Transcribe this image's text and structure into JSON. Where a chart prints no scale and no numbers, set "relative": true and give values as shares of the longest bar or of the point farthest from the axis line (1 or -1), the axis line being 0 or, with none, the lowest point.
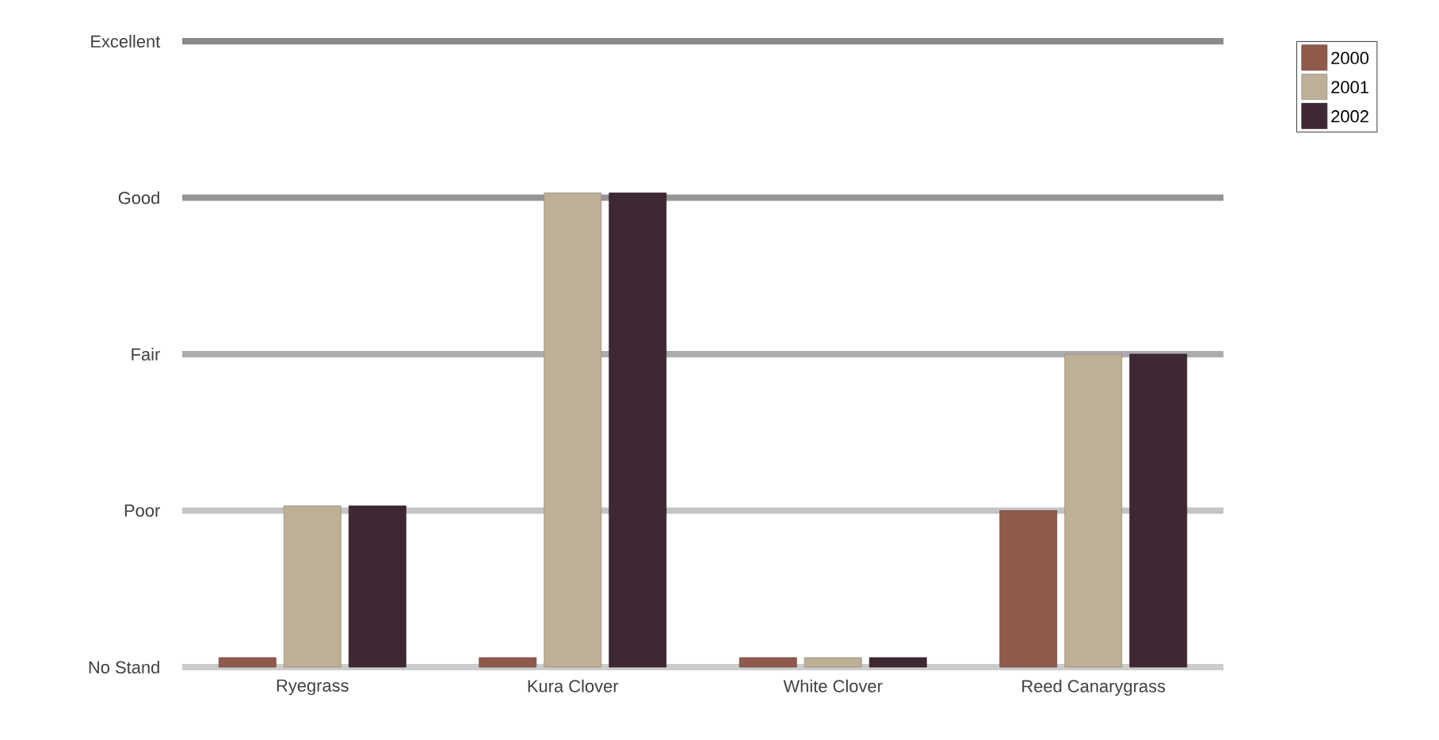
{
  "chart_data": {
    "type": "bar",
    "relative": true,
    "categories": [
      "Ryegrass",
      "Kura Clover",
      "White Clover",
      "Reed Canarygrass"
    ],
    "series": [
      {
        "name": "2000",
        "color": "#8f5a4c",
        "values": [
          0.02,
          0.02,
          0.02,
          0.33
        ]
      },
      {
        "name": "2001",
        "color": "#bdb096",
        "values": [
          0.34,
          1.0,
          0.02,
          0.66
        ]
      },
      {
        "name": "2002",
        "color": "#3e2834",
        "values": [
          0.34,
          1.0,
          0.02,
          0.66
        ]
      }
    ],
    "ref_lines": [
      {
        "axis": "y",
        "value": 0.33,
        "label": "Poor",
        "color": "#c4c4c4"
      },
      {
        "axis": "y",
        "value": 0.66,
        "label": "Fair",
        "color": "#acacac"
      },
      {
        "axis": "y",
        "value": 0.99,
        "label": "Good",
        "color": "#959595"
      },
      {
        "axis": "y",
        "value": 1.32,
        "label": "Excellent",
        "color": "#8a8a8a"
      }
    ],
    "annotations": [
      "No Stand"
    ],
    "legend": "top right"
  }
}
